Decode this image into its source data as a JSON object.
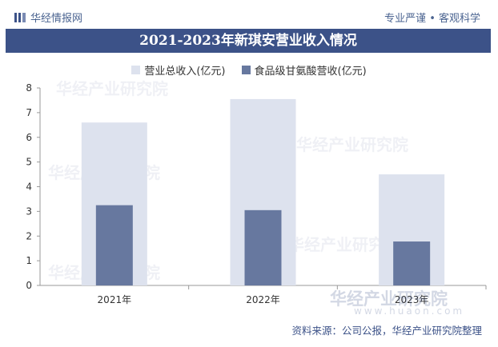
{
  "header": {
    "brand": "华经情报网",
    "slogan": "专业严谨 • 客观科学"
  },
  "chart_data": {
    "type": "bar",
    "title": "2021-2023年新琪安营业收入情况",
    "categories": [
      "2021年",
      "2022年",
      "2023年"
    ],
    "series": [
      {
        "name": "营业总收入(亿元)",
        "values": [
          6.6,
          7.55,
          4.5
        ],
        "color": "#dde2ee"
      },
      {
        "name": "食品级甘氨酸营收(亿元)",
        "values": [
          3.25,
          3.05,
          1.78
        ],
        "color": "#67789f"
      }
    ],
    "ylim": [
      0,
      8
    ],
    "yticks": [
      0,
      1,
      2,
      3,
      4,
      5,
      6,
      7,
      8
    ],
    "xlabel": "",
    "ylabel": "",
    "grid": false,
    "legend_position": "top-center"
  },
  "footer": {
    "source": "资料来源：公司公报，华经产业研究院整理"
  },
  "watermark": {
    "text": "华经产业研究院",
    "url": "www.huaon.com"
  }
}
